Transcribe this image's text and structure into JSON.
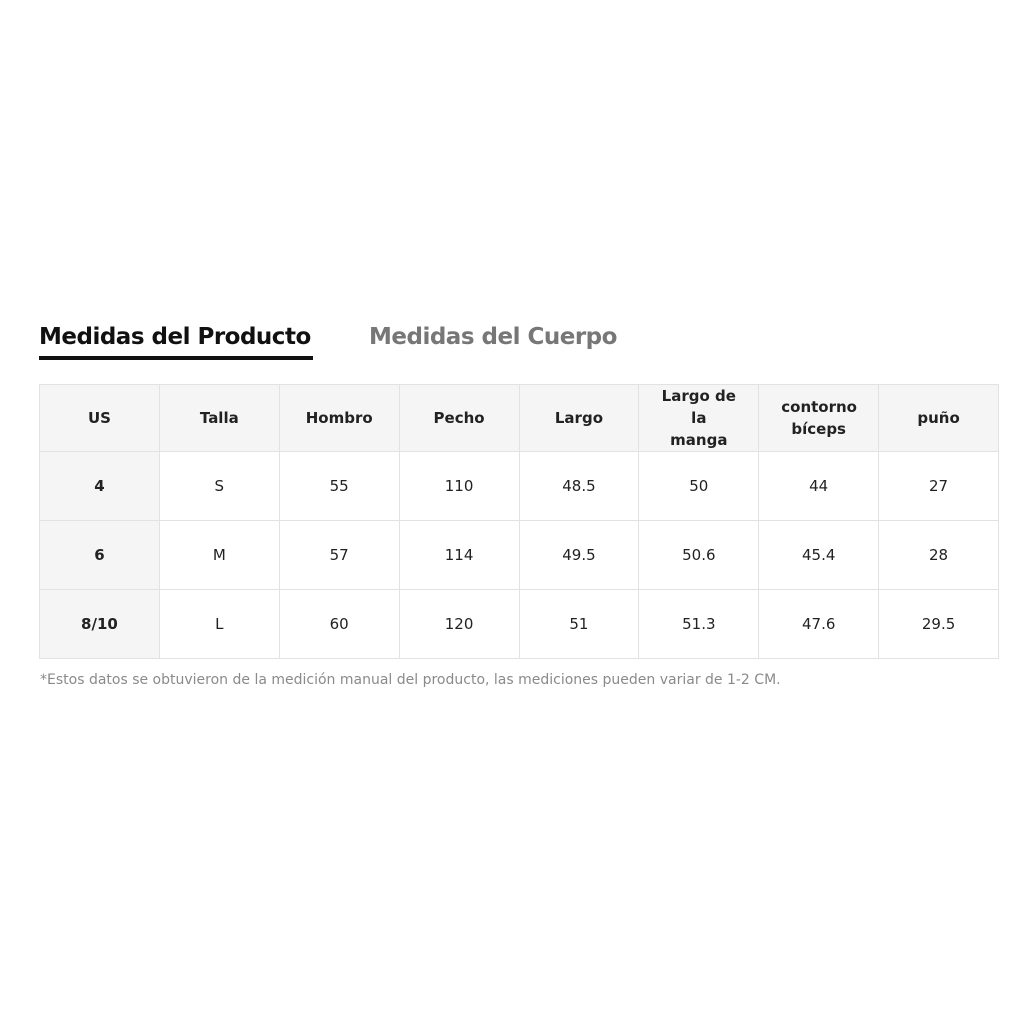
{
  "tabs": [
    {
      "label": "Medidas del Producto",
      "active": true
    },
    {
      "label": "Medidas del Cuerpo",
      "active": false
    }
  ],
  "table": {
    "headers": [
      "US",
      "Talla",
      "Hombro",
      "Pecho",
      "Largo",
      "Largo de la manga",
      "contorno bíceps",
      "puño"
    ],
    "rows": [
      [
        "4",
        "S",
        "55",
        "110",
        "48.5",
        "50",
        "44",
        "27"
      ],
      [
        "6",
        "M",
        "57",
        "114",
        "49.5",
        "50.6",
        "45.4",
        "28"
      ],
      [
        "8/10",
        "L",
        "60",
        "120",
        "51",
        "51.3",
        "47.6",
        "29.5"
      ]
    ]
  },
  "footnote": "*Estos datos se obtuvieron de la medición manual del producto, las mediciones pueden variar de 1-2 CM."
}
